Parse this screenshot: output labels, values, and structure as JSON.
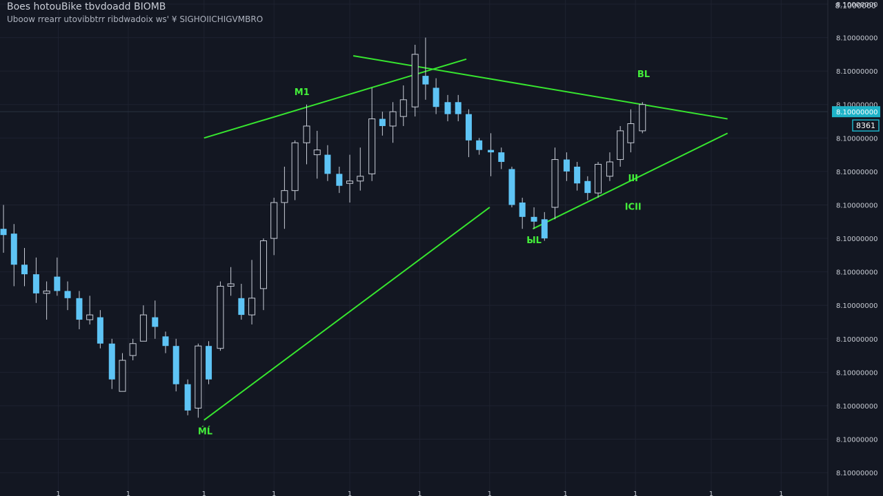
{
  "header": {
    "title": "Boes hotouBike tbvdoadd   BIOMB",
    "subtitle": "Uboow rrearr utovibbtrr  ribdwadoix ws' ¥ SIGHOIICHIGVMBRO",
    "corner_label": "8.1000000"
  },
  "colors": {
    "background": "#131722",
    "grid": "#1e2230",
    "candle": "#5ec4f5",
    "wick": "#c9ced8",
    "trendline": "#37e62f",
    "trend_label": "#43ee3a",
    "axis_text": "#c8ccd4",
    "price_tag": "#1eb3c8"
  },
  "chart_data": {
    "type": "candlestick",
    "x_range": [
      0,
      71
    ],
    "y_range": [
      1.0,
      11.0
    ],
    "grid": true,
    "price_axis": {
      "side": "right",
      "labels": [
        {
          "y": 11.0,
          "text": "8.10000000"
        },
        {
          "y": 10.3,
          "text": "8.10000000"
        },
        {
          "y": 9.6,
          "text": "8.10000000"
        },
        {
          "y": 8.9,
          "text": "8.10000000"
        },
        {
          "y": 8.2,
          "text": "8.10000000"
        },
        {
          "y": 7.5,
          "text": "8.10000000"
        },
        {
          "y": 6.8,
          "text": "8.10000000"
        },
        {
          "y": 6.1,
          "text": "8.10000000"
        },
        {
          "y": 5.4,
          "text": "8.10000000"
        },
        {
          "y": 4.7,
          "text": "8.10000000"
        },
        {
          "y": 4.0,
          "text": "8.10000000"
        },
        {
          "y": 3.3,
          "text": "8.10000000"
        },
        {
          "y": 2.6,
          "text": "8.10000000"
        },
        {
          "y": 1.9,
          "text": "8.10000000"
        },
        {
          "y": 1.2,
          "text": "8.10000000"
        }
      ]
    },
    "x_ticks": [
      {
        "x": 5,
        "text": "1"
      },
      {
        "x": 11,
        "text": "1"
      },
      {
        "x": 17.5,
        "text": "1"
      },
      {
        "x": 23.5,
        "text": "1"
      },
      {
        "x": 30,
        "text": "1"
      },
      {
        "x": 36,
        "text": "1"
      },
      {
        "x": 42,
        "text": "1"
      },
      {
        "x": 48.5,
        "text": "1"
      },
      {
        "x": 54.5,
        "text": "1"
      },
      {
        "x": 61,
        "text": "1"
      },
      {
        "x": 67,
        "text": "1"
      }
    ],
    "current_price": {
      "y": 8.75,
      "text": "8.10000000",
      "sub_text": "8361"
    },
    "candles": [
      {
        "x": 0.3,
        "o": 6.3,
        "c": 6.17,
        "h": 6.8,
        "l": 5.8
      },
      {
        "x": 1.2,
        "o": 6.2,
        "c": 5.55,
        "h": 6.4,
        "l": 5.1
      },
      {
        "x": 2.1,
        "o": 5.55,
        "c": 5.35,
        "h": 5.9,
        "l": 5.1
      },
      {
        "x": 3.1,
        "o": 5.35,
        "c": 4.95,
        "h": 5.7,
        "l": 4.75
      },
      {
        "x": 4.0,
        "o": 4.95,
        "c": 5.0,
        "h": 5.2,
        "l": 4.4
      },
      {
        "x": 4.9,
        "o": 5.3,
        "c": 5.0,
        "h": 5.7,
        "l": 4.9
      },
      {
        "x": 5.8,
        "o": 5.0,
        "c": 4.85,
        "h": 5.2,
        "l": 4.6
      },
      {
        "x": 6.8,
        "o": 4.85,
        "c": 4.4,
        "h": 5.0,
        "l": 4.2
      },
      {
        "x": 7.7,
        "o": 4.4,
        "c": 4.5,
        "h": 4.9,
        "l": 4.3
      },
      {
        "x": 8.6,
        "o": 4.45,
        "c": 3.9,
        "h": 4.6,
        "l": 3.8
      },
      {
        "x": 9.6,
        "o": 3.9,
        "c": 3.15,
        "h": 4.0,
        "l": 2.95
      },
      {
        "x": 10.5,
        "o": 2.9,
        "c": 3.55,
        "h": 3.7,
        "l": 2.9
      },
      {
        "x": 11.4,
        "o": 3.65,
        "c": 3.9,
        "h": 4.0,
        "l": 3.55
      },
      {
        "x": 12.3,
        "o": 3.95,
        "c": 4.5,
        "h": 4.7,
        "l": 3.95
      },
      {
        "x": 13.3,
        "o": 4.45,
        "c": 4.25,
        "h": 4.8,
        "l": 4.0
      },
      {
        "x": 14.2,
        "o": 4.05,
        "c": 3.85,
        "h": 4.15,
        "l": 3.7
      },
      {
        "x": 15.1,
        "o": 3.85,
        "c": 3.05,
        "h": 4.0,
        "l": 2.9
      },
      {
        "x": 16.1,
        "o": 3.05,
        "c": 2.5,
        "h": 3.15,
        "l": 2.4
      },
      {
        "x": 17.0,
        "o": 2.55,
        "c": 3.85,
        "h": 3.9,
        "l": 2.35
      },
      {
        "x": 17.9,
        "o": 3.85,
        "c": 3.15,
        "h": 3.95,
        "l": 3.05
      },
      {
        "x": 18.9,
        "o": 3.8,
        "c": 5.1,
        "h": 5.2,
        "l": 3.75
      },
      {
        "x": 19.8,
        "o": 5.1,
        "c": 5.15,
        "h": 5.5,
        "l": 4.9
      },
      {
        "x": 20.7,
        "o": 4.85,
        "c": 4.5,
        "h": 5.15,
        "l": 4.4
      },
      {
        "x": 21.6,
        "o": 4.5,
        "c": 4.85,
        "h": 5.65,
        "l": 4.3
      },
      {
        "x": 22.6,
        "o": 5.05,
        "c": 6.05,
        "h": 6.1,
        "l": 4.6
      },
      {
        "x": 23.5,
        "o": 6.1,
        "c": 6.85,
        "h": 6.95,
        "l": 5.75
      },
      {
        "x": 24.4,
        "o": 6.85,
        "c": 7.1,
        "h": 7.6,
        "l": 6.3
      },
      {
        "x": 25.3,
        "o": 7.1,
        "c": 8.1,
        "h": 8.15,
        "l": 6.9
      },
      {
        "x": 26.3,
        "o": 8.1,
        "c": 8.45,
        "h": 8.9,
        "l": 7.65
      },
      {
        "x": 27.2,
        "o": 7.85,
        "c": 7.95,
        "h": 8.35,
        "l": 7.35
      },
      {
        "x": 28.1,
        "o": 7.85,
        "c": 7.45,
        "h": 8.05,
        "l": 7.3
      },
      {
        "x": 29.1,
        "o": 7.45,
        "c": 7.2,
        "h": 7.6,
        "l": 7.05
      },
      {
        "x": 30.0,
        "o": 7.25,
        "c": 7.3,
        "h": 7.85,
        "l": 6.85
      },
      {
        "x": 30.9,
        "o": 7.3,
        "c": 7.4,
        "h": 8.0,
        "l": 7.1
      },
      {
        "x": 31.9,
        "o": 7.45,
        "c": 8.6,
        "h": 9.25,
        "l": 7.3
      },
      {
        "x": 32.8,
        "o": 8.6,
        "c": 8.45,
        "h": 8.75,
        "l": 8.25
      },
      {
        "x": 33.7,
        "o": 8.45,
        "c": 8.75,
        "h": 8.95,
        "l": 8.1
      },
      {
        "x": 34.6,
        "o": 8.65,
        "c": 9.0,
        "h": 9.3,
        "l": 8.45
      },
      {
        "x": 35.6,
        "o": 8.85,
        "c": 9.95,
        "h": 10.15,
        "l": 8.65
      },
      {
        "x": 36.5,
        "o": 9.5,
        "c": 9.32,
        "h": 10.3,
        "l": 9.0
      },
      {
        "x": 37.4,
        "o": 9.25,
        "c": 8.85,
        "h": 9.45,
        "l": 8.7
      },
      {
        "x": 38.4,
        "o": 8.95,
        "c": 8.7,
        "h": 9.1,
        "l": 8.55
      },
      {
        "x": 39.3,
        "o": 8.95,
        "c": 8.7,
        "h": 9.1,
        "l": 8.55
      },
      {
        "x": 40.2,
        "o": 8.7,
        "c": 8.15,
        "h": 8.8,
        "l": 7.8
      },
      {
        "x": 41.1,
        "o": 8.15,
        "c": 7.95,
        "h": 8.2,
        "l": 7.85
      },
      {
        "x": 42.1,
        "o": 7.95,
        "c": 7.9,
        "h": 8.3,
        "l": 7.4
      },
      {
        "x": 43.0,
        "o": 7.9,
        "c": 7.7,
        "h": 8.0,
        "l": 7.55
      },
      {
        "x": 43.9,
        "o": 7.55,
        "c": 6.8,
        "h": 7.6,
        "l": 6.75
      },
      {
        "x": 44.8,
        "o": 6.85,
        "c": 6.55,
        "h": 6.95,
        "l": 6.3
      },
      {
        "x": 45.8,
        "o": 6.55,
        "c": 6.45,
        "h": 6.75,
        "l": 6.3
      },
      {
        "x": 46.7,
        "o": 6.5,
        "c": 6.1,
        "h": 6.65,
        "l": 6.05
      },
      {
        "x": 47.6,
        "o": 6.75,
        "c": 7.75,
        "h": 8.0,
        "l": 6.5
      },
      {
        "x": 48.6,
        "o": 7.75,
        "c": 7.5,
        "h": 7.9,
        "l": 7.3
      },
      {
        "x": 49.5,
        "o": 7.6,
        "c": 7.25,
        "h": 7.7,
        "l": 7.1
      },
      {
        "x": 50.4,
        "o": 7.3,
        "c": 7.05,
        "h": 7.4,
        "l": 6.9
      },
      {
        "x": 51.3,
        "o": 7.05,
        "c": 7.65,
        "h": 7.7,
        "l": 6.95
      },
      {
        "x": 52.3,
        "o": 7.4,
        "c": 7.7,
        "h": 7.9,
        "l": 7.3
      },
      {
        "x": 53.2,
        "o": 7.75,
        "c": 8.35,
        "h": 8.45,
        "l": 7.6
      },
      {
        "x": 54.1,
        "o": 8.1,
        "c": 8.5,
        "h": 8.8,
        "l": 7.9
      },
      {
        "x": 55.1,
        "o": 8.35,
        "c": 8.9,
        "h": 8.95,
        "l": 8.3
      }
    ],
    "trendlines": [
      {
        "x1": 17.5,
        "y1": 2.3,
        "x2": 42.0,
        "y2": 6.75
      },
      {
        "x1": 17.5,
        "y1": 8.2,
        "x2": 40.0,
        "y2": 9.85
      },
      {
        "x1": 30.3,
        "y1": 9.92,
        "x2": 62.4,
        "y2": 8.6
      },
      {
        "x1": 45.7,
        "y1": 6.3,
        "x2": 62.4,
        "y2": 8.3
      }
    ],
    "annotations": [
      {
        "x": 17.6,
        "y": 2.0,
        "text": "ḾĹ"
      },
      {
        "x": 25.9,
        "y": 9.1,
        "text": "M1"
      },
      {
        "x": 55.2,
        "y": 9.47,
        "text": "BL"
      },
      {
        "x": 54.3,
        "y": 7.3,
        "text": "III"
      },
      {
        "x": 54.3,
        "y": 6.7,
        "text": "ICII"
      },
      {
        "x": 45.8,
        "y": 6.0,
        "text": "ЫL"
      }
    ]
  }
}
